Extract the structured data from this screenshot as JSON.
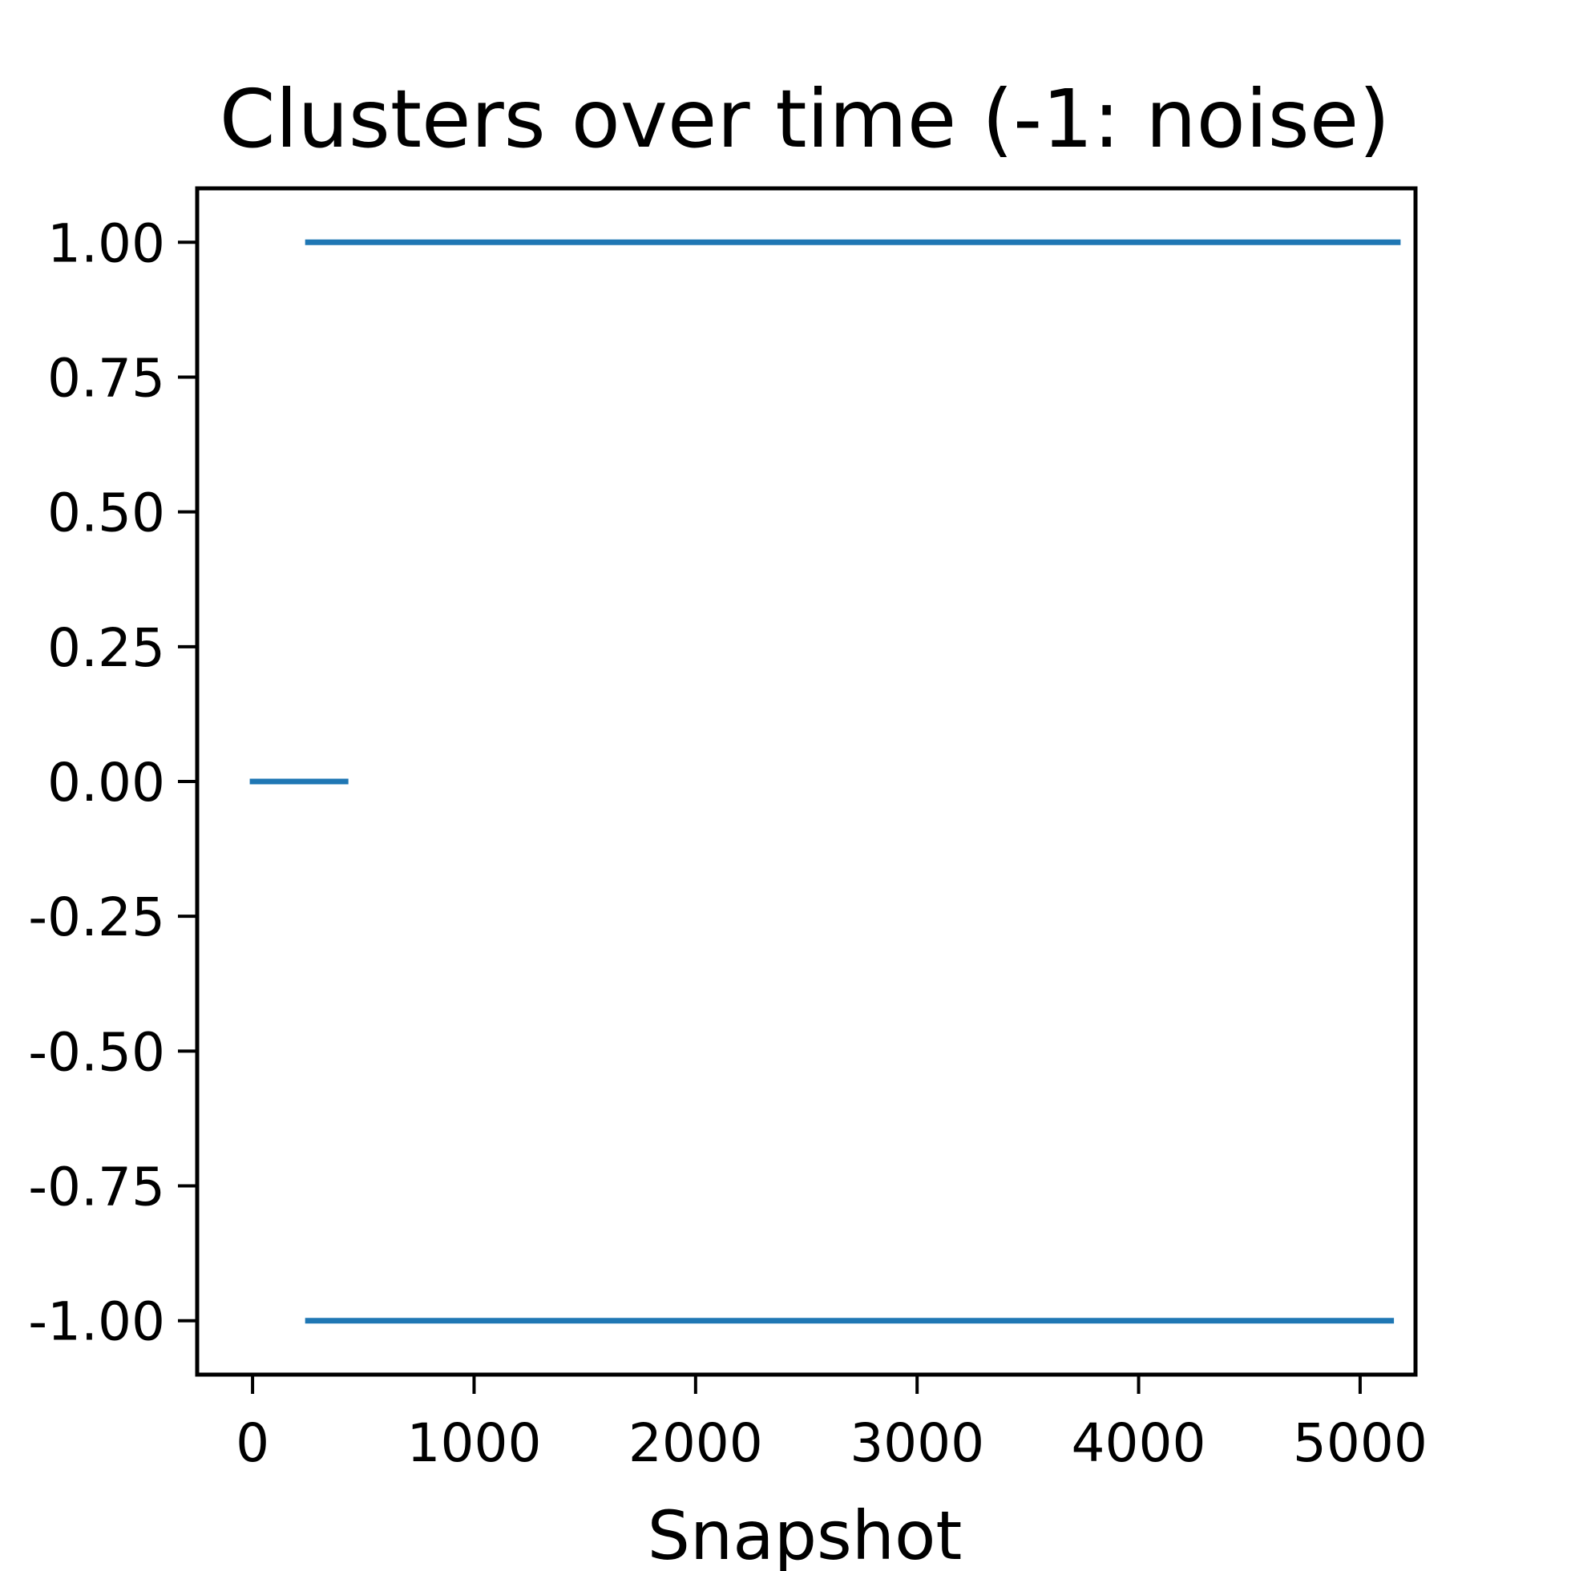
{
  "chart_data": {
    "type": "line",
    "title": "Clusters over time (-1: noise)",
    "xlabel": "Snapshot",
    "ylabel": "",
    "xlim": [
      -250,
      5250
    ],
    "ylim": [
      -1.1,
      1.1
    ],
    "xticks": [
      0,
      1000,
      2000,
      3000,
      4000,
      5000
    ],
    "xtick_labels": [
      "0",
      "1000",
      "2000",
      "3000",
      "4000",
      "5000"
    ],
    "yticks": [
      1.0,
      0.75,
      0.5,
      0.25,
      0.0,
      -0.25,
      -0.5,
      -0.75,
      -1.0
    ],
    "ytick_labels": [
      "1.00",
      "0.75",
      "0.50",
      "0.25",
      "0.00",
      "-0.25",
      "-0.50",
      "-0.75",
      "-1.00"
    ],
    "grid": false,
    "series_color": "#1f77b4",
    "segments": [
      {
        "x": [
          0,
          420
        ],
        "y": [
          0,
          0
        ]
      },
      {
        "x": [
          250,
          5170
        ],
        "y": [
          1,
          1
        ]
      },
      {
        "x": [
          250,
          5140
        ],
        "y": [
          -1,
          -1
        ]
      }
    ]
  }
}
